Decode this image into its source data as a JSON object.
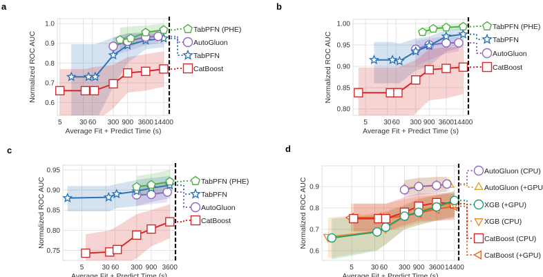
{
  "chart_data": [
    {
      "panel": "a",
      "type": "line",
      "xscale": "log",
      "xlabel": "Average Fit + Predict Time (s)",
      "ylabel": "Normalized ROC AUC",
      "xticks": [
        5,
        30,
        60,
        300,
        900,
        3600,
        14400
      ],
      "xtick_labels": [
        "5",
        "30",
        "60",
        "300",
        "900",
        "3600",
        "14400"
      ],
      "yticks": [
        0.6,
        0.7,
        0.8,
        0.9,
        1.0
      ],
      "ytick_labels": [
        "0.6",
        "0.7",
        "0.8",
        "0.9",
        "1.0"
      ],
      "xlim": [
        4.1,
        22000
      ],
      "ylim": [
        0.535,
        1.025
      ],
      "grid": true,
      "time_limit_line": "dashed vertical at right edge",
      "legend_placement": "right",
      "series": [
        {
          "name": "TabPFN (PHE)",
          "color": "#4caf3f",
          "marker": "pentagon",
          "x": [
            500,
            1150,
            3600,
            14400
          ],
          "y": [
            0.918,
            0.925,
            0.955,
            0.968
          ],
          "lower": [
            0.87,
            0.88,
            0.92,
            0.94
          ],
          "upper": [
            0.98,
            0.985,
            0.99,
            1.0
          ]
        },
        {
          "name": "AutoGluon",
          "color": "#9467bd",
          "marker": "circle",
          "x": [
            300,
            900,
            3600,
            9400
          ],
          "y": [
            0.885,
            0.91,
            0.932,
            0.935
          ],
          "lower": [
            0.84,
            0.86,
            0.89,
            0.9
          ],
          "upper": [
            0.93,
            0.95,
            0.96,
            0.96
          ]
        },
        {
          "name": "TabPFN",
          "color": "#2b73b5",
          "marker": "star",
          "x": [
            12,
            45,
            75,
            300,
            900,
            3600,
            14400
          ],
          "y": [
            0.73,
            0.73,
            0.73,
            0.84,
            0.89,
            0.915,
            0.925
          ],
          "lower": [
            0.5,
            0.5,
            0.5,
            0.68,
            0.8,
            0.87,
            0.88
          ],
          "upper": [
            0.895,
            0.895,
            0.895,
            0.93,
            0.95,
            0.95,
            0.95
          ]
        },
        {
          "name": "CatBoost",
          "color": "#d62728",
          "marker": "square",
          "x": [
            5,
            35,
            70,
            300,
            900,
            3600,
            14400
          ],
          "y": [
            0.66,
            0.66,
            0.66,
            0.695,
            0.75,
            0.758,
            0.77
          ],
          "lower": [
            0.5,
            0.5,
            0.5,
            0.57,
            0.65,
            0.66,
            0.68
          ],
          "upper": [
            0.77,
            0.77,
            0.78,
            0.79,
            0.83,
            0.845,
            0.86
          ]
        }
      ]
    },
    {
      "panel": "b",
      "type": "line",
      "xscale": "log",
      "xlabel": "Average Fit + Predict Time (s)",
      "ylabel": "Normalized ROC AUC",
      "xticks": [
        5,
        30,
        60,
        300,
        900,
        3600,
        14400
      ],
      "xtick_labels": [
        "5",
        "30",
        "60",
        "300",
        "900",
        "3600",
        "14400"
      ],
      "yticks": [
        0.8,
        0.85,
        0.9,
        0.95,
        1.0
      ],
      "ytick_labels": [
        "0.80",
        "0.85",
        "0.90",
        "0.95",
        "1.00"
      ],
      "xlim": [
        1.8,
        22000
      ],
      "ylim": [
        0.785,
        1.01
      ],
      "grid": true,
      "time_limit_line": "dashed vertical at right edge",
      "legend_placement": "right",
      "series": [
        {
          "name": "TabPFN (PHE)",
          "color": "#4caf3f",
          "marker": "pentagon",
          "x": [
            520,
            1250,
            3600,
            14400
          ],
          "y": [
            0.98,
            0.988,
            0.991,
            0.993
          ],
          "lower": [
            0.97,
            0.978,
            0.984,
            0.986
          ],
          "upper": [
            0.99,
            0.995,
            0.998,
            1.0
          ]
        },
        {
          "name": "TabPFN",
          "color": "#2b73b5",
          "marker": "star",
          "x": [
            10,
            45,
            80,
            300,
            900,
            3600,
            14400
          ],
          "y": [
            0.915,
            0.915,
            0.912,
            0.935,
            0.948,
            0.97,
            0.975
          ],
          "lower": [
            0.86,
            0.86,
            0.86,
            0.89,
            0.9,
            0.935,
            0.945
          ],
          "upper": [
            0.957,
            0.957,
            0.953,
            0.965,
            0.97,
            0.985,
            0.99
          ]
        },
        {
          "name": "AutoGluon",
          "color": "#9467bd",
          "marker": "circle",
          "x": [
            300,
            900,
            3600,
            10000
          ],
          "y": [
            0.94,
            0.95,
            0.955,
            0.955
          ],
          "lower": [
            0.9,
            0.915,
            0.93,
            0.935
          ],
          "upper": [
            0.96,
            0.965,
            0.97,
            0.97
          ]
        },
        {
          "name": "CatBoost",
          "color": "#d62728",
          "marker": "square",
          "x": [
            2.8,
            38,
            70,
            300,
            900,
            3600,
            14400
          ],
          "y": [
            0.838,
            0.838,
            0.838,
            0.868,
            0.892,
            0.895,
            0.898
          ],
          "lower": [
            0.75,
            0.75,
            0.75,
            0.79,
            0.82,
            0.825,
            0.835
          ],
          "upper": [
            0.897,
            0.897,
            0.897,
            0.915,
            0.94,
            0.945,
            0.945
          ]
        }
      ]
    },
    {
      "panel": "c",
      "type": "line",
      "xscale": "log",
      "xlabel": "Average Fit + Predict Time (s)",
      "ylabel": "Normalized ROC AUC",
      "xticks": [
        5,
        30,
        60,
        300,
        900,
        3600
      ],
      "xtick_labels": [
        "5",
        "30",
        "60",
        "300",
        "900",
        "3600"
      ],
      "yticks": [
        0.75,
        0.8,
        0.85,
        0.9,
        0.95
      ],
      "ytick_labels": [
        "0.75",
        "0.80",
        "0.85",
        "0.90",
        "0.95"
      ],
      "xlim": [
        1.2,
        5500
      ],
      "ylim": [
        0.725,
        0.962
      ],
      "grid": true,
      "time_limit_line": "dashed vertical at right edge",
      "legend_placement": "right",
      "series": [
        {
          "name": "TabPFN (PHE)",
          "color": "#4caf3f",
          "marker": "pentagon",
          "x": [
            300,
            900,
            3600
          ],
          "y": [
            0.908,
            0.913,
            0.921
          ],
          "lower": [
            0.88,
            0.89,
            0.9
          ],
          "upper": [
            0.935,
            0.94,
            0.95
          ]
        },
        {
          "name": "TabPFN",
          "color": "#2b73b5",
          "marker": "star",
          "x": [
            1.7,
            37,
            67,
            300,
            900,
            3600
          ],
          "y": [
            0.88,
            0.882,
            0.89,
            0.897,
            0.905,
            0.912
          ],
          "lower": [
            0.847,
            0.847,
            0.855,
            0.86,
            0.87,
            0.88
          ],
          "upper": [
            0.91,
            0.91,
            0.915,
            0.925,
            0.93,
            0.935
          ]
        },
        {
          "name": "AutoGluon",
          "color": "#9467bd",
          "marker": "circle",
          "x": [
            300,
            900,
            3000
          ],
          "y": [
            0.888,
            0.889,
            0.895
          ],
          "lower": [
            0.86,
            0.865,
            0.87
          ],
          "upper": [
            0.91,
            0.915,
            0.92
          ]
        },
        {
          "name": "CatBoost",
          "color": "#d62728",
          "marker": "square",
          "x": [
            6.6,
            40,
            70,
            300,
            900,
            3600
          ],
          "y": [
            0.743,
            0.746,
            0.752,
            0.788,
            0.803,
            0.821
          ],
          "lower": [
            0.705,
            0.705,
            0.71,
            0.73,
            0.76,
            0.78
          ],
          "upper": [
            0.79,
            0.8,
            0.81,
            0.84,
            0.85,
            0.865
          ]
        }
      ]
    },
    {
      "panel": "d",
      "type": "line",
      "xscale": "log",
      "xlabel": "Average Fit + Predict Time (s)",
      "ylabel": "Normalized ROC AUC",
      "xticks": [
        5,
        30,
        60,
        300,
        900,
        3600,
        14400
      ],
      "xtick_labels": [
        "5",
        "30",
        "60",
        "300",
        "900",
        "3600",
        "14400"
      ],
      "yticks": [
        0.6,
        0.7,
        0.8,
        0.9
      ],
      "ytick_labels": [
        "0.6",
        "0.7",
        "0.8",
        "0.9"
      ],
      "xlim": [
        0.5,
        20000
      ],
      "ylim": [
        0.555,
        0.997
      ],
      "grid": true,
      "time_limit_line": "dashed vertical at right edge",
      "legend_placement": "right",
      "series": [
        {
          "name": "AutoGluon (CPU)",
          "color": "#9467bd",
          "marker": "circle",
          "x": [
            300,
            900,
            3600,
            8000
          ],
          "y": [
            0.885,
            0.9,
            0.905,
            0.912
          ],
          "lower": [
            0.85,
            0.86,
            0.87,
            0.875
          ],
          "upper": [
            0.93,
            0.94,
            0.945,
            0.945
          ]
        },
        {
          "name": "AutoGluon (+GPU)",
          "color": "#e0a526",
          "marker": "triangle-up",
          "x": [
            300,
            900,
            3600,
            9800
          ],
          "y": [
            0.89,
            0.9,
            0.907,
            0.908
          ],
          "lower": [
            0.86,
            0.87,
            0.875,
            0.875
          ],
          "upper": [
            0.93,
            0.94,
            0.945,
            0.945
          ]
        },
        {
          "name": "XGB (+GPU)",
          "color": "#1f9e6e",
          "marker": "circle",
          "x": [
            1.07,
            36,
            70,
            300,
            900,
            3600,
            14400
          ],
          "y": [
            0.66,
            0.688,
            0.71,
            0.762,
            0.78,
            0.805,
            0.835
          ],
          "lower": [
            0.56,
            0.6,
            0.63,
            0.7,
            0.72,
            0.74,
            0.76
          ],
          "upper": [
            0.75,
            0.77,
            0.78,
            0.81,
            0.84,
            0.86,
            0.88
          ]
        },
        {
          "name": "XGB (CPU)",
          "color": "#f28a2e",
          "marker": "triangle-down",
          "x": [
            0.8,
            36,
            70,
            300,
            900,
            3600,
            14400
          ],
          "y": [
            0.665,
            0.69,
            0.705,
            0.76,
            0.785,
            0.81,
            0.82
          ],
          "lower": [
            0.565,
            0.605,
            0.63,
            0.7,
            0.72,
            0.745,
            0.76
          ],
          "upper": [
            0.755,
            0.775,
            0.785,
            0.815,
            0.845,
            0.86,
            0.875
          ]
        },
        {
          "name": "CatBoost (CPU)",
          "color": "#d62728",
          "marker": "square",
          "x": [
            5.8,
            40,
            70,
            300,
            900,
            3600,
            14400
          ],
          "y": [
            0.75,
            0.75,
            0.75,
            0.78,
            0.808,
            0.825,
            0.82
          ],
          "lower": [
            0.69,
            0.69,
            0.69,
            0.72,
            0.74,
            0.74,
            0.745
          ],
          "upper": [
            0.82,
            0.82,
            0.82,
            0.85,
            0.87,
            0.87,
            0.87
          ]
        },
        {
          "name": "CatBoost (+GPU)",
          "color": "#e8621c",
          "marker": "triangle-left",
          "x": [
            4.7,
            40,
            70,
            300,
            900,
            3600,
            14400
          ],
          "y": [
            0.755,
            0.755,
            0.752,
            0.763,
            0.775,
            0.795,
            0.808
          ],
          "lower": [
            0.69,
            0.69,
            0.69,
            0.71,
            0.73,
            0.74,
            0.75
          ],
          "upper": [
            0.82,
            0.82,
            0.82,
            0.84,
            0.855,
            0.86,
            0.865
          ]
        }
      ]
    }
  ]
}
